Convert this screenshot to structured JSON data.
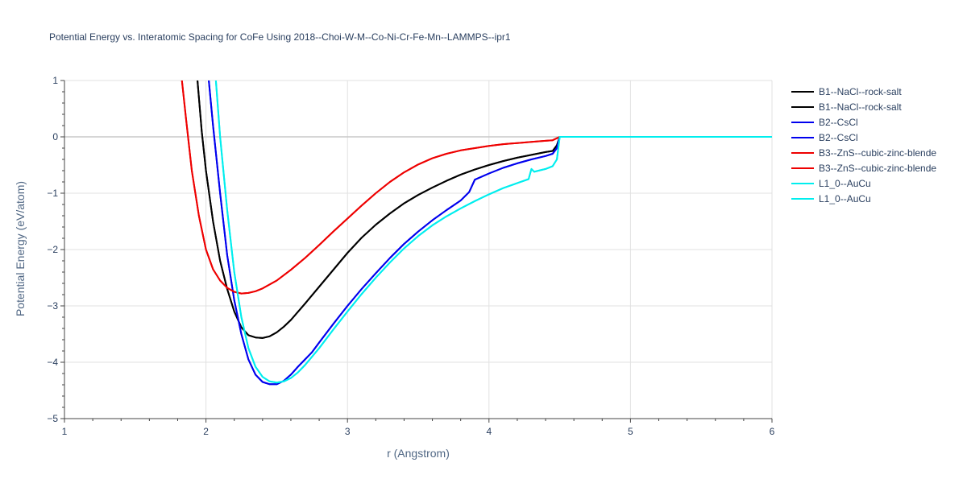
{
  "chart_data": {
    "type": "line",
    "title": "Potential Energy vs. Interatomic Spacing for CoFe Using 2018--Choi-W-M--Co-Ni-Cr-Fe-Mn--LAMMPS--ipr1",
    "xlabel": "r (Angstrom)",
    "ylabel": "Potential Energy (eV/atom)",
    "xlim": [
      1,
      6
    ],
    "ylim": [
      -5,
      1
    ],
    "xticks": [
      1,
      2,
      3,
      4,
      5,
      6
    ],
    "yticks": [
      -5,
      -4,
      -3,
      -2,
      -1,
      0,
      1
    ],
    "yticklabels": [
      "−5",
      "−4",
      "−3",
      "−2",
      "−1",
      "0",
      "1"
    ],
    "grid": true,
    "legend_position": "right",
    "series": [
      {
        "name": "B1--NaCl--rock-salt",
        "color": "#000000",
        "x": [
          1.94,
          1.97,
          2.0,
          2.05,
          2.1,
          2.15,
          2.2,
          2.25,
          2.3,
          2.35,
          2.4,
          2.45,
          2.5,
          2.55,
          2.6,
          2.7,
          2.8,
          2.9,
          3.0,
          3.1,
          3.2,
          3.3,
          3.4,
          3.5,
          3.6,
          3.7,
          3.8,
          3.9,
          4.0,
          4.1,
          4.2,
          4.3,
          4.4,
          4.45,
          4.48,
          4.5,
          6.0
        ],
        "y": [
          1.0,
          0.1,
          -0.6,
          -1.5,
          -2.2,
          -2.7,
          -3.1,
          -3.38,
          -3.52,
          -3.56,
          -3.57,
          -3.54,
          -3.47,
          -3.37,
          -3.25,
          -2.96,
          -2.66,
          -2.36,
          -2.06,
          -1.79,
          -1.56,
          -1.36,
          -1.18,
          -1.03,
          -0.9,
          -0.78,
          -0.67,
          -0.58,
          -0.5,
          -0.43,
          -0.37,
          -0.32,
          -0.27,
          -0.25,
          -0.15,
          0.0,
          0.0
        ]
      },
      {
        "name": "B1--NaCl--rock-salt",
        "color": "#000000",
        "x": [
          1.94,
          1.97,
          2.0,
          2.05,
          2.1,
          2.15,
          2.2,
          2.25,
          2.3,
          2.35,
          2.4,
          2.45,
          2.5,
          2.55,
          2.6,
          2.7,
          2.8,
          2.9,
          3.0,
          3.1,
          3.2,
          3.3,
          3.4,
          3.5,
          3.6,
          3.7,
          3.8,
          3.9,
          4.0,
          4.1,
          4.2,
          4.3,
          4.4,
          4.45,
          4.48,
          4.5,
          6.0
        ],
        "y": [
          1.0,
          0.1,
          -0.6,
          -1.5,
          -2.2,
          -2.7,
          -3.1,
          -3.38,
          -3.52,
          -3.56,
          -3.57,
          -3.54,
          -3.47,
          -3.37,
          -3.25,
          -2.96,
          -2.66,
          -2.36,
          -2.06,
          -1.79,
          -1.56,
          -1.36,
          -1.18,
          -1.03,
          -0.9,
          -0.78,
          -0.67,
          -0.58,
          -0.5,
          -0.43,
          -0.37,
          -0.32,
          -0.27,
          -0.25,
          -0.15,
          0.0,
          0.0
        ]
      },
      {
        "name": "B2--CsCl",
        "color": "#0000ee",
        "x": [
          2.02,
          2.05,
          2.1,
          2.15,
          2.2,
          2.25,
          2.3,
          2.35,
          2.4,
          2.45,
          2.5,
          2.55,
          2.6,
          2.65,
          2.7,
          2.75,
          2.8,
          2.9,
          3.0,
          3.1,
          3.2,
          3.3,
          3.4,
          3.5,
          3.6,
          3.7,
          3.8,
          3.86,
          3.9,
          4.0,
          4.1,
          4.2,
          4.3,
          4.4,
          4.45,
          4.48,
          4.5,
          6.0
        ],
        "y": [
          1.0,
          0.2,
          -1.0,
          -2.1,
          -2.9,
          -3.5,
          -3.95,
          -4.22,
          -4.35,
          -4.39,
          -4.39,
          -4.33,
          -4.22,
          -4.08,
          -3.95,
          -3.82,
          -3.65,
          -3.32,
          -3.0,
          -2.7,
          -2.42,
          -2.15,
          -1.9,
          -1.68,
          -1.48,
          -1.3,
          -1.13,
          -0.98,
          -0.76,
          -0.65,
          -0.55,
          -0.47,
          -0.4,
          -0.34,
          -0.3,
          -0.2,
          0.0,
          0.0
        ]
      },
      {
        "name": "B2--CsCl",
        "color": "#0000ee",
        "x": [
          2.02,
          2.05,
          2.1,
          2.15,
          2.2,
          2.25,
          2.3,
          2.35,
          2.4,
          2.45,
          2.5,
          2.55,
          2.6,
          2.65,
          2.7,
          2.75,
          2.8,
          2.9,
          3.0,
          3.1,
          3.2,
          3.3,
          3.4,
          3.5,
          3.6,
          3.7,
          3.8,
          3.86,
          3.9,
          4.0,
          4.1,
          4.2,
          4.3,
          4.4,
          4.45,
          4.48,
          4.5,
          6.0
        ],
        "y": [
          1.0,
          0.2,
          -1.0,
          -2.1,
          -2.9,
          -3.5,
          -3.95,
          -4.22,
          -4.35,
          -4.39,
          -4.39,
          -4.33,
          -4.22,
          -4.08,
          -3.95,
          -3.82,
          -3.65,
          -3.32,
          -3.0,
          -2.7,
          -2.42,
          -2.15,
          -1.9,
          -1.68,
          -1.48,
          -1.3,
          -1.13,
          -0.98,
          -0.76,
          -0.65,
          -0.55,
          -0.47,
          -0.4,
          -0.34,
          -0.3,
          -0.2,
          0.0,
          0.0
        ]
      },
      {
        "name": "B3--ZnS--cubic-zinc-blende",
        "color": "#ee0000",
        "x": [
          1.83,
          1.86,
          1.9,
          1.95,
          2.0,
          2.05,
          2.1,
          2.15,
          2.2,
          2.25,
          2.3,
          2.35,
          2.4,
          2.45,
          2.5,
          2.6,
          2.7,
          2.8,
          2.9,
          3.0,
          3.1,
          3.2,
          3.3,
          3.4,
          3.5,
          3.6,
          3.7,
          3.8,
          3.9,
          4.0,
          4.1,
          4.2,
          4.3,
          4.4,
          4.45,
          4.5,
          6.0
        ],
        "y": [
          1.0,
          0.3,
          -0.6,
          -1.4,
          -2.0,
          -2.35,
          -2.55,
          -2.68,
          -2.75,
          -2.78,
          -2.77,
          -2.74,
          -2.69,
          -2.62,
          -2.55,
          -2.36,
          -2.15,
          -1.92,
          -1.68,
          -1.45,
          -1.22,
          -1.0,
          -0.8,
          -0.63,
          -0.49,
          -0.38,
          -0.3,
          -0.24,
          -0.2,
          -0.16,
          -0.13,
          -0.11,
          -0.09,
          -0.07,
          -0.06,
          0.0,
          0.0
        ]
      },
      {
        "name": "B3--ZnS--cubic-zinc-blende",
        "color": "#ee0000",
        "x": [
          1.83,
          1.86,
          1.9,
          1.95,
          2.0,
          2.05,
          2.1,
          2.15,
          2.2,
          2.25,
          2.3,
          2.35,
          2.4,
          2.45,
          2.5,
          2.6,
          2.7,
          2.8,
          2.9,
          3.0,
          3.1,
          3.2,
          3.3,
          3.4,
          3.5,
          3.6,
          3.7,
          3.8,
          3.9,
          4.0,
          4.1,
          4.2,
          4.3,
          4.4,
          4.45,
          4.5,
          6.0
        ],
        "y": [
          1.0,
          0.3,
          -0.6,
          -1.4,
          -2.0,
          -2.35,
          -2.55,
          -2.68,
          -2.75,
          -2.78,
          -2.77,
          -2.74,
          -2.69,
          -2.62,
          -2.55,
          -2.36,
          -2.15,
          -1.92,
          -1.68,
          -1.45,
          -1.22,
          -1.0,
          -0.8,
          -0.63,
          -0.49,
          -0.38,
          -0.3,
          -0.24,
          -0.2,
          -0.16,
          -0.13,
          -0.11,
          -0.09,
          -0.07,
          -0.06,
          0.0,
          0.0
        ]
      },
      {
        "name": "L1_0--AuCu",
        "color": "#00eeee",
        "x": [
          2.07,
          2.1,
          2.15,
          2.2,
          2.25,
          2.3,
          2.35,
          2.4,
          2.45,
          2.5,
          2.55,
          2.6,
          2.65,
          2.7,
          2.8,
          2.9,
          3.0,
          3.1,
          3.2,
          3.3,
          3.4,
          3.5,
          3.6,
          3.7,
          3.8,
          3.9,
          4.0,
          4.1,
          4.2,
          4.28,
          4.3,
          4.32,
          4.35,
          4.4,
          4.45,
          4.48,
          4.5,
          6.0
        ],
        "y": [
          1.0,
          0.0,
          -1.3,
          -2.4,
          -3.2,
          -3.75,
          -4.08,
          -4.26,
          -4.34,
          -4.36,
          -4.34,
          -4.28,
          -4.18,
          -4.05,
          -3.75,
          -3.42,
          -3.1,
          -2.79,
          -2.5,
          -2.23,
          -1.98,
          -1.76,
          -1.57,
          -1.41,
          -1.27,
          -1.14,
          -1.02,
          -0.91,
          -0.82,
          -0.75,
          -0.57,
          -0.62,
          -0.6,
          -0.57,
          -0.52,
          -0.4,
          0.0,
          0.0
        ]
      },
      {
        "name": "L1_0--AuCu",
        "color": "#00eeee",
        "x": [
          2.07,
          2.1,
          2.15,
          2.2,
          2.25,
          2.3,
          2.35,
          2.4,
          2.45,
          2.5,
          2.55,
          2.6,
          2.65,
          2.7,
          2.8,
          2.9,
          3.0,
          3.1,
          3.2,
          3.3,
          3.4,
          3.5,
          3.6,
          3.7,
          3.8,
          3.9,
          4.0,
          4.1,
          4.2,
          4.28,
          4.3,
          4.32,
          4.35,
          4.4,
          4.45,
          4.48,
          4.5,
          6.0
        ],
        "y": [
          1.0,
          0.0,
          -1.3,
          -2.4,
          -3.2,
          -3.75,
          -4.08,
          -4.26,
          -4.34,
          -4.36,
          -4.34,
          -4.28,
          -4.18,
          -4.05,
          -3.75,
          -3.42,
          -3.1,
          -2.79,
          -2.5,
          -2.23,
          -1.98,
          -1.76,
          -1.57,
          -1.41,
          -1.27,
          -1.14,
          -1.02,
          -0.91,
          -0.82,
          -0.75,
          -0.57,
          -0.62,
          -0.6,
          -0.57,
          -0.52,
          -0.4,
          0.0,
          0.0
        ]
      }
    ]
  }
}
